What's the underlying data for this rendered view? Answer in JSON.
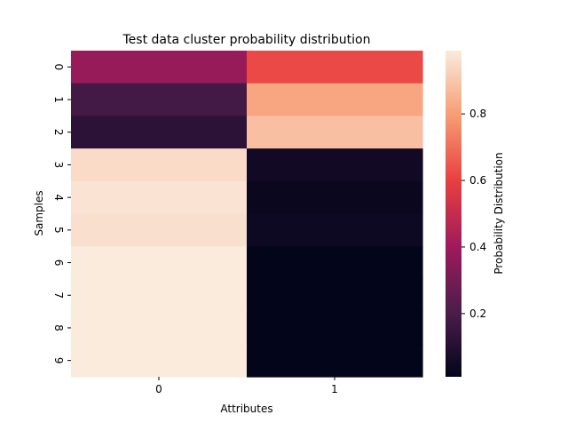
{
  "chart_data": {
    "type": "heatmap",
    "title": "Test data cluster probability distribution",
    "xlabel": "Attributes",
    "ylabel": "Samples",
    "x_categories": [
      "0",
      "1"
    ],
    "y_categories": [
      "0",
      "1",
      "2",
      "3",
      "4",
      "5",
      "6",
      "7",
      "8",
      "9"
    ],
    "values": [
      [
        0.38,
        0.62
      ],
      [
        0.18,
        0.82
      ],
      [
        0.12,
        0.88
      ],
      [
        0.95,
        0.05
      ],
      [
        0.97,
        0.03
      ],
      [
        0.96,
        0.04
      ],
      [
        0.99,
        0.01
      ],
      [
        0.99,
        0.01
      ],
      [
        0.99,
        0.01
      ],
      [
        0.99,
        0.01
      ]
    ],
    "colorbar": {
      "label": "Probability Distribution",
      "vmin": 0.01,
      "vmax": 0.99,
      "ticks": [
        0.2,
        0.4,
        0.6,
        0.8
      ],
      "tick_labels": [
        "0.2",
        "0.4",
        "0.6",
        "0.8"
      ],
      "colormap": "rocket",
      "color_stops": [
        "#03051a",
        "#4c1d4b",
        "#a11a5b",
        "#e83f3f",
        "#f69c73",
        "#faebdd"
      ]
    },
    "grid": false
  }
}
